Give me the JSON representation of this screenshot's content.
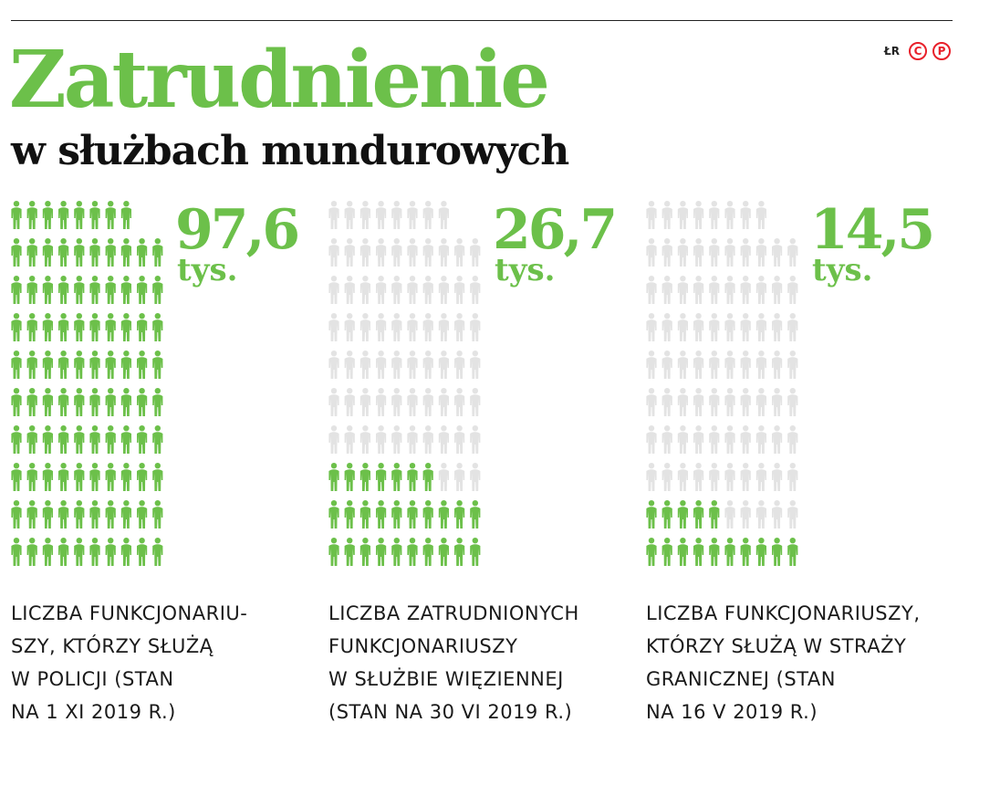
{
  "title": "Zatrudnienie",
  "subtitle": "w służbach mundurowych",
  "credits": {
    "author": "ŁR",
    "logo_c": "C",
    "logo_p": "P"
  },
  "colors": {
    "accent": "#6cc04a",
    "inactive": "#e3e3e3",
    "text": "#111111",
    "logo": "#e8202a"
  },
  "icon": "person-icon",
  "chart_data": {
    "type": "pictogram",
    "unit": "tys.",
    "series": [
      {
        "value": "97,6",
        "unit": "tys.",
        "number": 97.6,
        "caption": "LICZBA FUNKCJONARIU-\nSZY, KTÓRZY SŁUŻĄ\nW POLICJI (STAN\nNA 1 XI 2019 R.)"
      },
      {
        "value": "26,7",
        "unit": "tys.",
        "number": 26.7,
        "caption": "LICZBA ZATRUDNIONYCH\nFUNKCJONARIUSZY\nW SŁUŻBIE WIĘZIENNEJ\n(STAN NA 30 VI 2019 R.)"
      },
      {
        "value": "14,5",
        "unit": "tys.",
        "number": 14.5,
        "caption": "LICZBA FUNKCJONARIUSZY,\nKTÓRZY SŁUŻĄ W STRAŻY\nGRANICZNEJ (STAN\nNA 16 V 2019 R.)"
      }
    ]
  }
}
